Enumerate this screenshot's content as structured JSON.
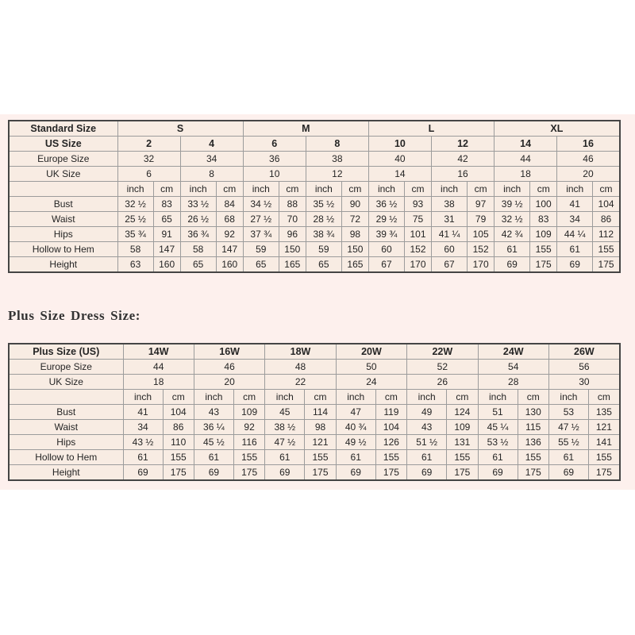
{
  "colors": {
    "page_background": "#ffffff",
    "band_background": "#fdf0ed",
    "cell_background": "#f8ece3",
    "grid_line": "#9c9c9c",
    "outer_border": "#454545",
    "text": "#252525"
  },
  "plus_heading": "Plus Size Dress Size:",
  "standard_table": {
    "header_row": {
      "label": "Standard Size",
      "groups": [
        "S",
        "M",
        "L",
        "XL"
      ]
    },
    "us_row": {
      "label": "US Size",
      "values": [
        "2",
        "4",
        "6",
        "8",
        "10",
        "12",
        "14",
        "16"
      ]
    },
    "europe_row": {
      "label": "Europe Size",
      "values": [
        "32",
        "34",
        "36",
        "38",
        "40",
        "42",
        "44",
        "46"
      ]
    },
    "uk_row": {
      "label": "UK Size",
      "values": [
        "6",
        "8",
        "10",
        "12",
        "14",
        "16",
        "18",
        "20"
      ]
    },
    "unit_row": {
      "label": "",
      "units": [
        "inch",
        "cm"
      ]
    },
    "measure_rows": [
      {
        "label": "Bust",
        "values": [
          "32 ½",
          "83",
          "33 ½",
          "84",
          "34 ½",
          "88",
          "35 ½",
          "90",
          "36 ½",
          "93",
          "38",
          "97",
          "39 ½",
          "100",
          "41",
          "104"
        ]
      },
      {
        "label": "Waist",
        "values": [
          "25 ½",
          "65",
          "26 ½",
          "68",
          "27 ½",
          "70",
          "28 ½",
          "72",
          "29 ½",
          "75",
          "31",
          "79",
          "32 ½",
          "83",
          "34",
          "86"
        ]
      },
      {
        "label": "Hips",
        "values": [
          "35 ¾",
          "91",
          "36 ¾",
          "92",
          "37 ¾",
          "96",
          "38 ¾",
          "98",
          "39 ¾",
          "101",
          "41 ¼",
          "105",
          "42 ¾",
          "109",
          "44 ¼",
          "112"
        ]
      },
      {
        "label": "Hollow to Hem",
        "values": [
          "58",
          "147",
          "58",
          "147",
          "59",
          "150",
          "59",
          "150",
          "60",
          "152",
          "60",
          "152",
          "61",
          "155",
          "61",
          "155"
        ]
      },
      {
        "label": "Height",
        "values": [
          "63",
          "160",
          "65",
          "160",
          "65",
          "165",
          "65",
          "165",
          "67",
          "170",
          "67",
          "170",
          "69",
          "175",
          "69",
          "175"
        ]
      }
    ]
  },
  "plus_table": {
    "header_row": {
      "label": "Plus Size (US)",
      "groups": [
        "14W",
        "16W",
        "18W",
        "20W",
        "22W",
        "24W",
        "26W"
      ]
    },
    "europe_row": {
      "label": "Europe Size",
      "values": [
        "44",
        "46",
        "48",
        "50",
        "52",
        "54",
        "56"
      ]
    },
    "uk_row": {
      "label": "UK Size",
      "values": [
        "18",
        "20",
        "22",
        "24",
        "26",
        "28",
        "30"
      ]
    },
    "unit_row": {
      "label": "",
      "units": [
        "inch",
        "cm"
      ]
    },
    "measure_rows": [
      {
        "label": "Bust",
        "values": [
          "41",
          "104",
          "43",
          "109",
          "45",
          "114",
          "47",
          "119",
          "49",
          "124",
          "51",
          "130",
          "53",
          "135"
        ]
      },
      {
        "label": "Waist",
        "values": [
          "34",
          "86",
          "36 ¼",
          "92",
          "38 ½",
          "98",
          "40 ¾",
          "104",
          "43",
          "109",
          "45 ¼",
          "115",
          "47 ½",
          "121"
        ]
      },
      {
        "label": "Hips",
        "values": [
          "43 ½",
          "110",
          "45 ½",
          "116",
          "47 ½",
          "121",
          "49 ½",
          "126",
          "51 ½",
          "131",
          "53 ½",
          "136",
          "55 ½",
          "141"
        ]
      },
      {
        "label": "Hollow to Hem",
        "values": [
          "61",
          "155",
          "61",
          "155",
          "61",
          "155",
          "61",
          "155",
          "61",
          "155",
          "61",
          "155",
          "61",
          "155"
        ]
      },
      {
        "label": "Height",
        "values": [
          "69",
          "175",
          "69",
          "175",
          "69",
          "175",
          "69",
          "175",
          "69",
          "175",
          "69",
          "175",
          "69",
          "175"
        ]
      }
    ]
  }
}
